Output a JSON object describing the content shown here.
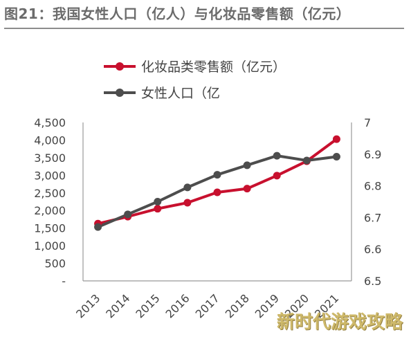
{
  "figure": {
    "title": "图21：我国女性人口（亿人）与化妆品零售额（亿元）",
    "watermark": "新时代游戏攻略"
  },
  "colors": {
    "series_retail": "#c8102e",
    "series_population": "#4d4d4d",
    "axis": "#999999",
    "title_rule": "#8c8c8c"
  },
  "chart_data": {
    "type": "line",
    "categories": [
      "2013",
      "2014",
      "2015",
      "2016",
      "2017",
      "2018",
      "2019",
      "2020",
      "2021"
    ],
    "series": [
      {
        "name": "化妆品类零售额（亿元）",
        "axis": "left",
        "color": "#c8102e",
        "values": [
          1625,
          1825,
          2050,
          2220,
          2515,
          2620,
          2990,
          3400,
          4026
        ]
      },
      {
        "name": "女性人口（亿",
        "axis": "right",
        "color": "#4d4d4d",
        "values": [
          6.67,
          6.71,
          6.75,
          6.795,
          6.835,
          6.865,
          6.895,
          6.88,
          6.892
        ]
      }
    ],
    "y_left": {
      "ylim": [
        0,
        4500
      ],
      "ticks": [
        "-",
        "500",
        "1,000",
        "1,500",
        "2,000",
        "2,500",
        "3,000",
        "3,500",
        "4,000",
        "4,500"
      ]
    },
    "y_right": {
      "ylim": [
        6.5,
        7.0
      ],
      "ticks": [
        "6.5",
        "6.6",
        "6.7",
        "6.8",
        "6.9",
        "7"
      ]
    },
    "legend_placement": "top-left",
    "grid": false
  }
}
